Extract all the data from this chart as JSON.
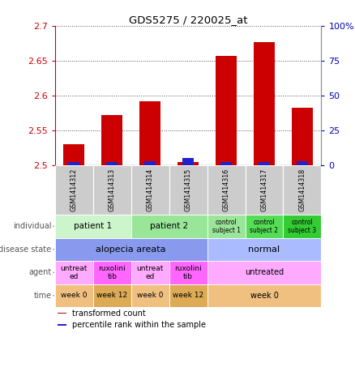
{
  "title": "GDS5275 / 220025_at",
  "samples": [
    "GSM1414312",
    "GSM1414313",
    "GSM1414314",
    "GSM1414315",
    "GSM1414316",
    "GSM1414317",
    "GSM1414318"
  ],
  "transformed_count": [
    2.53,
    2.572,
    2.592,
    2.505,
    2.657,
    2.676,
    2.582
  ],
  "percentile_rank": [
    2,
    2,
    3,
    5,
    2,
    2,
    3
  ],
  "ylim_left": [
    2.5,
    2.7
  ],
  "yticks_left": [
    2.5,
    2.55,
    2.6,
    2.65,
    2.7
  ],
  "ytick_labels_left": [
    "2.5",
    "2.55",
    "2.6",
    "2.65",
    "2.7"
  ],
  "ylim_right": [
    0,
    100
  ],
  "yticks_right": [
    0,
    25,
    50,
    75,
    100
  ],
  "ytick_labels_right": [
    "0",
    "25",
    "50",
    "75",
    "100%"
  ],
  "bar_color_red": "#cc0000",
  "bar_color_blue": "#2222cc",
  "bar_width": 0.55,
  "blue_bar_width": 0.3,
  "annotation_rows": [
    {
      "label": "individual",
      "cells": [
        {
          "text": "patient 1",
          "span": [
            0,
            1
          ],
          "color": "#ccf5cc",
          "fontsize": 7.5
        },
        {
          "text": "patient 2",
          "span": [
            2,
            3
          ],
          "color": "#99e699",
          "fontsize": 7.5
        },
        {
          "text": "control\nsubject 1",
          "span": [
            4,
            4
          ],
          "color": "#99e699",
          "fontsize": 5.5
        },
        {
          "text": "control\nsubject 2",
          "span": [
            5,
            5
          ],
          "color": "#55dd55",
          "fontsize": 5.5
        },
        {
          "text": "control\nsubject 3",
          "span": [
            6,
            6
          ],
          "color": "#33cc33",
          "fontsize": 5.5
        }
      ]
    },
    {
      "label": "disease state",
      "cells": [
        {
          "text": "alopecia areata",
          "span": [
            0,
            3
          ],
          "color": "#8899ee",
          "fontsize": 8
        },
        {
          "text": "normal",
          "span": [
            4,
            6
          ],
          "color": "#aabbff",
          "fontsize": 8
        }
      ]
    },
    {
      "label": "agent",
      "cells": [
        {
          "text": "untreat\ned",
          "span": [
            0,
            0
          ],
          "color": "#ffaaff",
          "fontsize": 6.5
        },
        {
          "text": "ruxolini\ntib",
          "span": [
            1,
            1
          ],
          "color": "#ff66ff",
          "fontsize": 6.5
        },
        {
          "text": "untreat\ned",
          "span": [
            2,
            2
          ],
          "color": "#ffaaff",
          "fontsize": 6.5
        },
        {
          "text": "ruxolini\ntib",
          "span": [
            3,
            3
          ],
          "color": "#ff66ff",
          "fontsize": 6.5
        },
        {
          "text": "untreated",
          "span": [
            4,
            6
          ],
          "color": "#ffaaff",
          "fontsize": 7
        }
      ]
    },
    {
      "label": "time",
      "cells": [
        {
          "text": "week 0",
          "span": [
            0,
            0
          ],
          "color": "#f0c080",
          "fontsize": 6.5
        },
        {
          "text": "week 12",
          "span": [
            1,
            1
          ],
          "color": "#ddaa55",
          "fontsize": 6.5
        },
        {
          "text": "week 0",
          "span": [
            2,
            2
          ],
          "color": "#f0c080",
          "fontsize": 6.5
        },
        {
          "text": "week 12",
          "span": [
            3,
            3
          ],
          "color": "#ddaa55",
          "fontsize": 6.5
        },
        {
          "text": "week 0",
          "span": [
            4,
            6
          ],
          "color": "#f0c080",
          "fontsize": 7
        }
      ]
    }
  ],
  "legend_items": [
    {
      "label": "transformed count",
      "color": "#cc0000"
    },
    {
      "label": "percentile rank within the sample",
      "color": "#2222cc"
    }
  ],
  "grid_color": "#555555",
  "axis_color_left": "#cc0000",
  "axis_color_right": "#0000bb",
  "bg_color": "#ffffff",
  "sample_bg_color": "#cccccc",
  "left_label_color": "#555555",
  "fig_width": 4.38,
  "fig_height": 4.53,
  "dpi": 100
}
